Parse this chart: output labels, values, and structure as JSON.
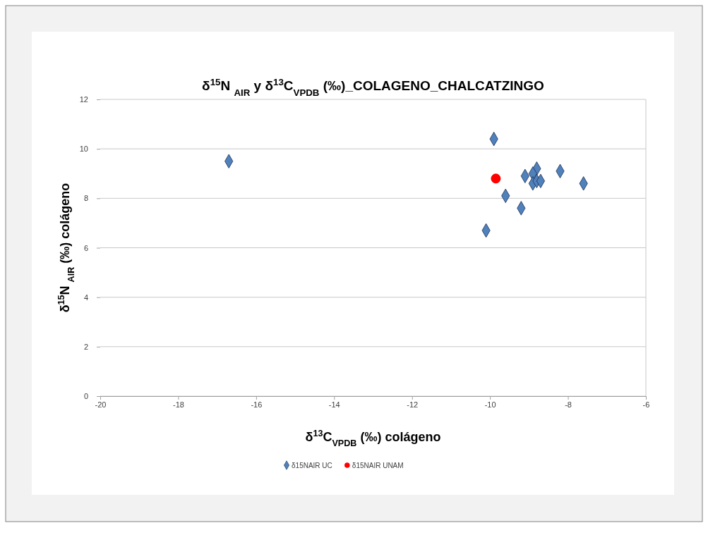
{
  "chart_data": {
    "type": "scatter",
    "title": "δ$^{15}$N $_{AIR}$ y δ$^{13}$C$_{VPDB}$ (‰)_COLAGENO_CHALCATZINGO",
    "xlabel": "δ$^{13}$C$_{VPDB}$ (‰) colágeno",
    "ylabel": "δ$^{15}$N $_{AIR}$ (‰) colágeno",
    "xlim": [
      -20,
      -6
    ],
    "xticks": [
      -20,
      -18,
      -16,
      -14,
      -12,
      -10,
      -8,
      -6
    ],
    "ylim": [
      0,
      12
    ],
    "yticks": [
      0,
      2,
      4,
      6,
      8,
      10,
      12
    ],
    "grid": "y",
    "legend": "bottom",
    "series": [
      {
        "name": "δ15NAIR UC",
        "color": "#4f81bd",
        "marker": "diamond",
        "x": [
          -16.7,
          -9.9,
          -9.1,
          -8.8,
          -8.9,
          -8.2,
          -8.9,
          -8.8,
          -8.7,
          -7.6,
          -9.6,
          -9.2,
          -10.1
        ],
        "values": [
          9.5,
          10.4,
          8.9,
          9.2,
          9.0,
          9.1,
          8.6,
          8.7,
          8.7,
          8.6,
          8.1,
          7.6,
          6.7
        ]
      },
      {
        "name": "δ15NAIR UNAM",
        "color": "#ff0000",
        "marker": "circle",
        "x": [
          -9.85
        ],
        "values": [
          8.8
        ]
      }
    ]
  }
}
